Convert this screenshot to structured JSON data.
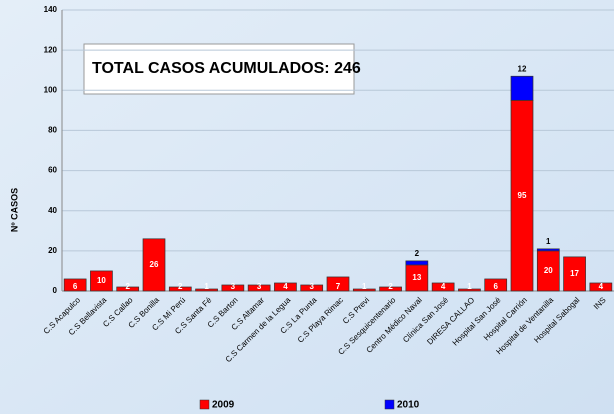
{
  "chart_data": {
    "type": "stacked_bar",
    "annotation": "TOTAL CASOS ACUMULADOS: 246",
    "y_label": "Nº CASOS",
    "categories": [
      "C.S Acapulco",
      "C.S Bellavista",
      "C.S Callao",
      "C.S Bonilla",
      "C.S Mi Perú",
      "C.S Santa Fé",
      "C.S Barton",
      "C.S Altamar",
      "C.S Carmen de la Legua",
      "C.S La Punta",
      "C.S Playa Rimac",
      "C.S Previ",
      "C.S Sesquicentenario",
      "Centro Médico Naval",
      "Clínica San José",
      "DIRESA CALLAO",
      "Hospital San José",
      "Hospital Carrión",
      "Hospital de Ventanilla",
      "Hospital Sabogal",
      "INS"
    ],
    "series": [
      {
        "name": "2009",
        "color": "#ff0000",
        "values": [
          6,
          10,
          2,
          26,
          2,
          1,
          3,
          3,
          4,
          3,
          7,
          1,
          2,
          13,
          4,
          1,
          6,
          95,
          20,
          17,
          4
        ]
      },
      {
        "name": "2010",
        "color": "#0000ff",
        "values": [
          null,
          null,
          null,
          null,
          null,
          null,
          null,
          null,
          null,
          null,
          null,
          null,
          null,
          2,
          null,
          null,
          null,
          12,
          1,
          null,
          null
        ]
      }
    ],
    "ylim": [
      0,
      140
    ],
    "yticks": [
      0,
      20,
      40,
      60,
      80,
      100,
      120,
      140
    ],
    "grid": true
  }
}
